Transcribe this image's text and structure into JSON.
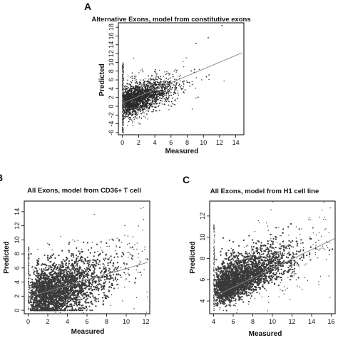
{
  "chart_data": [
    {
      "type": "scatter",
      "panel": "A",
      "title": "Alternative Exons, model from constitutive exons",
      "xlabel": "Measured",
      "ylabel": "Predicted",
      "xlim": [
        -0.5,
        15
      ],
      "ylim": [
        -6.5,
        19
      ],
      "xticks": [
        "0",
        "2",
        "4",
        "6",
        "8",
        "10",
        "12",
        "14"
      ],
      "yticks": [
        "-6",
        "-4",
        "-2",
        "0",
        "2",
        "4",
        "6",
        "8",
        "10",
        "12",
        "14",
        "16",
        "18"
      ],
      "point_color": "#2b2b2b",
      "description_of_cloud": {
        "x_range": [
          0,
          11.5
        ],
        "y_range": [
          -6,
          16
        ],
        "core_x": [
          0,
          8
        ],
        "core_y": [
          -1,
          8
        ]
      },
      "fit_line": {
        "x": [
          0,
          14.8
        ],
        "y": [
          0.7,
          12.2
        ]
      },
      "outliers": [
        {
          "x": 12.3,
          "y": 18.4
        },
        {
          "x": 10.6,
          "y": 15.6
        },
        {
          "x": 9.1,
          "y": 14.3
        }
      ]
    },
    {
      "type": "scatter",
      "panel": "B",
      "title": "All Exons, model from CD36+ T cell",
      "xlabel": "Measured",
      "ylabel": "Predicted",
      "xlim": [
        -0.4,
        12.4
      ],
      "ylim": [
        -0.5,
        15.5
      ],
      "xticks": [
        "0",
        "2",
        "4",
        "6",
        "8",
        "10",
        "12"
      ],
      "yticks": [
        "0",
        "2",
        "4",
        "6",
        "8",
        "10",
        "12",
        "14"
      ],
      "point_color": "#3a3a3a",
      "fit_line": {
        "x": [
          0,
          12.2
        ],
        "y": [
          1.9,
          6.8
        ]
      }
    },
    {
      "type": "scatter",
      "panel": "C",
      "title": "All Exons, model from H1 cell line",
      "xlabel": "Measured",
      "ylabel": "Predicted",
      "xlim": [
        3.6,
        16.4
      ],
      "ylim": [
        2.8,
        13.4
      ],
      "xticks": [
        "4",
        "6",
        "8",
        "10",
        "12",
        "14",
        "16"
      ],
      "yticks": [
        "4",
        "6",
        "8",
        "10",
        "12"
      ],
      "point_color": "#3a3a3a",
      "fit_line": {
        "x": [
          4,
          16.4
        ],
        "y": [
          4.4,
          9.9
        ]
      }
    }
  ]
}
